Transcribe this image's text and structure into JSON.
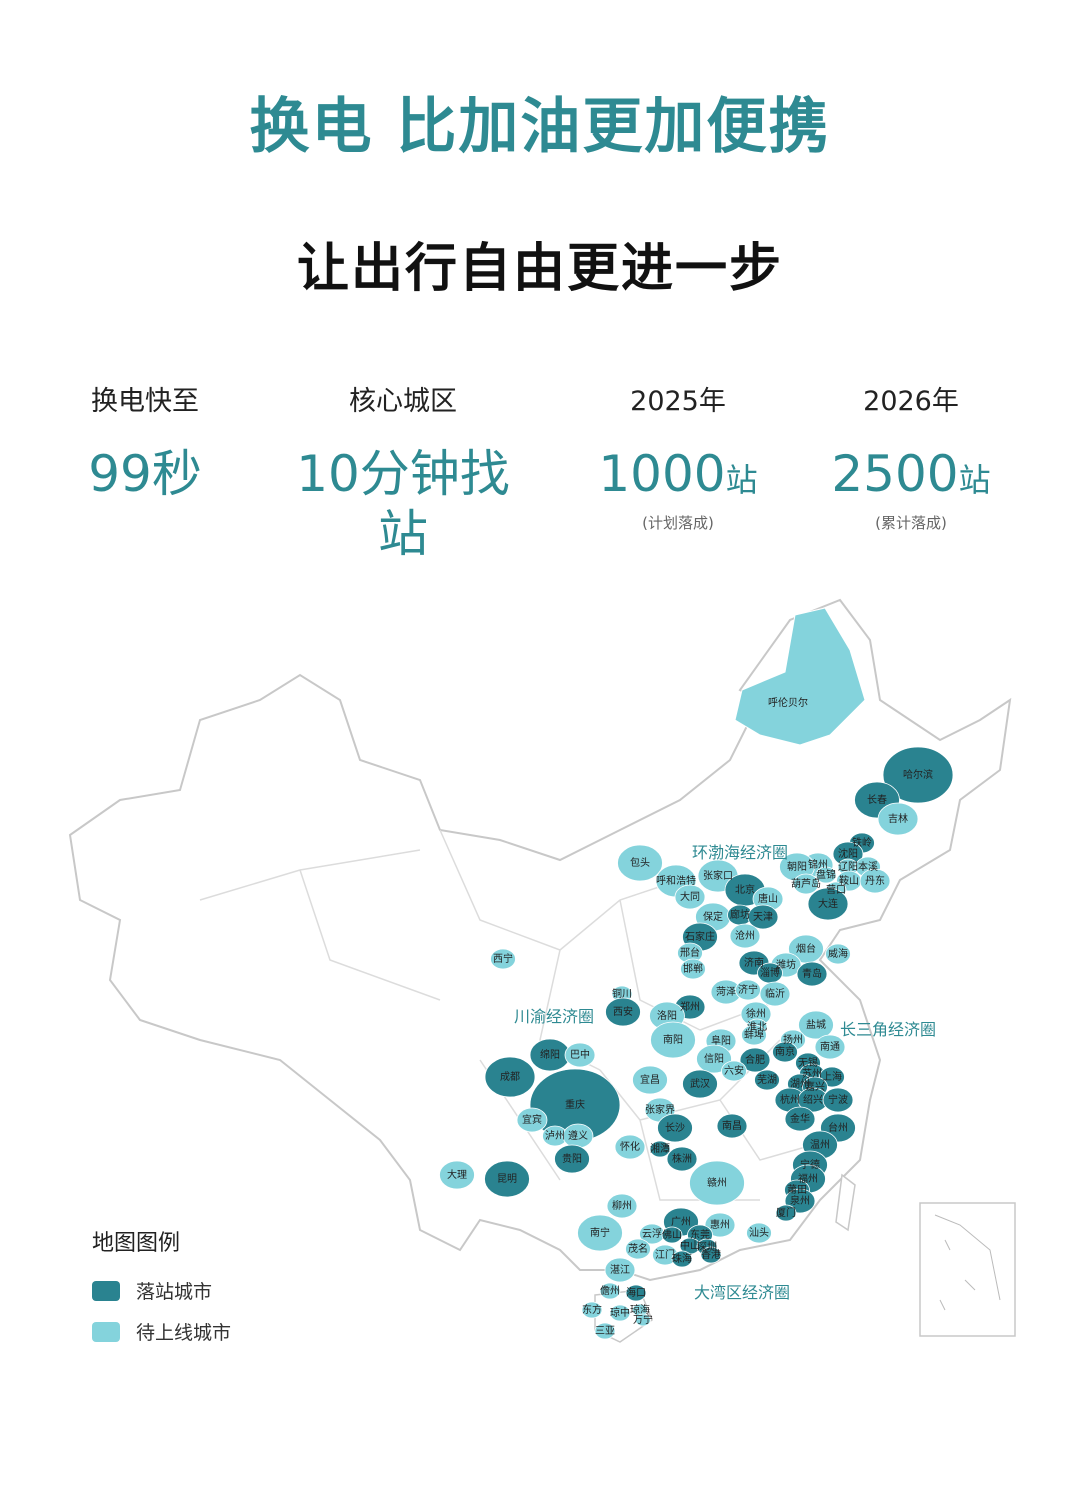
{
  "title": "换电 比加油更加便携",
  "subtitle": "让出行自由更进一步",
  "stats": [
    {
      "label": "换电快至",
      "value": "99",
      "unit": "秒",
      "note": ""
    },
    {
      "label": "核心城区",
      "value": "10分钟找站",
      "unit": "",
      "note": ""
    },
    {
      "label": "2025年",
      "value": "1000",
      "unit": "站",
      "note": "(计划落成)"
    },
    {
      "label": "2026年",
      "value": "2500",
      "unit": "站",
      "note": "(累计落成)"
    }
  ],
  "colors": {
    "accent": "#2e8a92",
    "landed": "#2a8390",
    "pending": "#84d3dc",
    "border": "#c8c8c8"
  },
  "legend": {
    "title": "地图图例",
    "items": [
      {
        "label": "落站城市",
        "status": "landed"
      },
      {
        "label": "待上线城市",
        "status": "pending"
      }
    ]
  },
  "regions": [
    "环渤海经济圈",
    "长三角经济圈",
    "川渝经济圈",
    "大湾区经济圈"
  ],
  "cities": [
    {
      "name": "呼伦贝尔",
      "status": "pending"
    },
    {
      "name": "哈尔滨",
      "status": "landed"
    },
    {
      "name": "长春",
      "status": "landed"
    },
    {
      "name": "吉林",
      "status": "pending"
    },
    {
      "name": "铁岭",
      "status": "landed"
    },
    {
      "name": "沈阳",
      "status": "landed"
    },
    {
      "name": "锦州",
      "status": "pending"
    },
    {
      "name": "辽阳",
      "status": "pending"
    },
    {
      "name": "本溪",
      "status": "pending"
    },
    {
      "name": "朝阳",
      "status": "pending"
    },
    {
      "name": "盘锦",
      "status": "pending"
    },
    {
      "name": "鞍山",
      "status": "pending"
    },
    {
      "name": "丹东",
      "status": "pending"
    },
    {
      "name": "葫芦岛",
      "status": "pending"
    },
    {
      "name": "营口",
      "status": "pending"
    },
    {
      "name": "大连",
      "status": "landed"
    },
    {
      "name": "包头",
      "status": "pending"
    },
    {
      "name": "呼和浩特",
      "status": "pending"
    },
    {
      "name": "张家口",
      "status": "pending"
    },
    {
      "name": "北京",
      "status": "landed"
    },
    {
      "name": "大同",
      "status": "pending"
    },
    {
      "name": "唐山",
      "status": "pending"
    },
    {
      "name": "保定",
      "status": "pending"
    },
    {
      "name": "廊坊",
      "status": "landed"
    },
    {
      "name": "天津",
      "status": "landed"
    },
    {
      "name": "石家庄",
      "status": "landed"
    },
    {
      "name": "沧州",
      "status": "pending"
    },
    {
      "name": "邢台",
      "status": "pending"
    },
    {
      "name": "邯郸",
      "status": "pending"
    },
    {
      "name": "西宁",
      "status": "pending"
    },
    {
      "name": "烟台",
      "status": "pending"
    },
    {
      "name": "威海",
      "status": "pending"
    },
    {
      "name": "济南",
      "status": "landed"
    },
    {
      "name": "潍坊",
      "status": "pending"
    },
    {
      "name": "淄博",
      "status": "landed"
    },
    {
      "name": "青岛",
      "status": "landed"
    },
    {
      "name": "菏泽",
      "status": "pending"
    },
    {
      "name": "济宁",
      "status": "pending"
    },
    {
      "name": "临沂",
      "status": "pending"
    },
    {
      "name": "铜川",
      "status": "pending"
    },
    {
      "name": "西安",
      "status": "landed"
    },
    {
      "name": "郑州",
      "status": "landed"
    },
    {
      "name": "徐州",
      "status": "pending"
    },
    {
      "name": "洛阳",
      "status": "pending"
    },
    {
      "name": "淮北",
      "status": "pending"
    },
    {
      "name": "盐城",
      "status": "pending"
    },
    {
      "name": "南阳",
      "status": "pending"
    },
    {
      "name": "阜阳",
      "status": "pending"
    },
    {
      "name": "蚌埠",
      "status": "pending"
    },
    {
      "name": "扬州",
      "status": "pending"
    },
    {
      "name": "南通",
      "status": "pending"
    },
    {
      "name": "绵阳",
      "status": "landed"
    },
    {
      "name": "巴中",
      "status": "pending"
    },
    {
      "name": "信阳",
      "status": "pending"
    },
    {
      "name": "合肥",
      "status": "landed"
    },
    {
      "name": "南京",
      "status": "landed"
    },
    {
      "name": "无锡",
      "status": "landed"
    },
    {
      "name": "六安",
      "status": "pending"
    },
    {
      "name": "苏州",
      "status": "landed"
    },
    {
      "name": "上海",
      "status": "landed"
    },
    {
      "name": "成都",
      "status": "landed"
    },
    {
      "name": "宜昌",
      "status": "pending"
    },
    {
      "name": "芜湖",
      "status": "landed"
    },
    {
      "name": "武汉",
      "status": "landed"
    },
    {
      "name": "湖州",
      "status": "landed"
    },
    {
      "name": "嘉兴",
      "status": "landed"
    },
    {
      "name": "重庆",
      "status": "landed"
    },
    {
      "name": "杭州",
      "status": "landed"
    },
    {
      "name": "绍兴",
      "status": "landed"
    },
    {
      "name": "宁波",
      "status": "landed"
    },
    {
      "name": "张家界",
      "status": "pending"
    },
    {
      "name": "宜宾",
      "status": "pending"
    },
    {
      "name": "长沙",
      "status": "landed"
    },
    {
      "name": "南昌",
      "status": "landed"
    },
    {
      "name": "金华",
      "status": "landed"
    },
    {
      "name": "泸州",
      "status": "pending"
    },
    {
      "name": "遵义",
      "status": "pending"
    },
    {
      "name": "怀化",
      "status": "pending"
    },
    {
      "name": "湘潭",
      "status": "landed"
    },
    {
      "name": "台州",
      "status": "landed"
    },
    {
      "name": "株洲",
      "status": "landed"
    },
    {
      "name": "贵阳",
      "status": "landed"
    },
    {
      "name": "温州",
      "status": "landed"
    },
    {
      "name": "宁德",
      "status": "landed"
    },
    {
      "name": "福州",
      "status": "landed"
    },
    {
      "name": "昆明",
      "status": "landed"
    },
    {
      "name": "大理",
      "status": "pending"
    },
    {
      "name": "赣州",
      "status": "pending"
    },
    {
      "name": "莆田",
      "status": "landed"
    },
    {
      "name": "泉州",
      "status": "landed"
    },
    {
      "name": "柳州",
      "status": "pending"
    },
    {
      "name": "厦门",
      "status": "landed"
    },
    {
      "name": "广州",
      "status": "landed"
    },
    {
      "name": "惠州",
      "status": "pending"
    },
    {
      "name": "汕头",
      "status": "pending"
    },
    {
      "name": "南宁",
      "status": "pending"
    },
    {
      "name": "云浮",
      "status": "pending"
    },
    {
      "name": "佛山",
      "status": "landed"
    },
    {
      "name": "东莞",
      "status": "landed"
    },
    {
      "name": "中山",
      "status": "landed"
    },
    {
      "name": "深圳",
      "status": "landed"
    },
    {
      "name": "茂名",
      "status": "pending"
    },
    {
      "name": "江门",
      "status": "pending"
    },
    {
      "name": "珠海",
      "status": "landed"
    },
    {
      "name": "香港",
      "status": "landed"
    },
    {
      "name": "湛江",
      "status": "pending"
    },
    {
      "name": "儋州",
      "status": "pending"
    },
    {
      "name": "海口",
      "status": "landed"
    },
    {
      "name": "东方",
      "status": "pending"
    },
    {
      "name": "琼中",
      "status": "pending"
    },
    {
      "name": "琼海",
      "status": "pending"
    },
    {
      "name": "万宁",
      "status": "pending"
    },
    {
      "name": "三亚",
      "status": "pending"
    }
  ]
}
